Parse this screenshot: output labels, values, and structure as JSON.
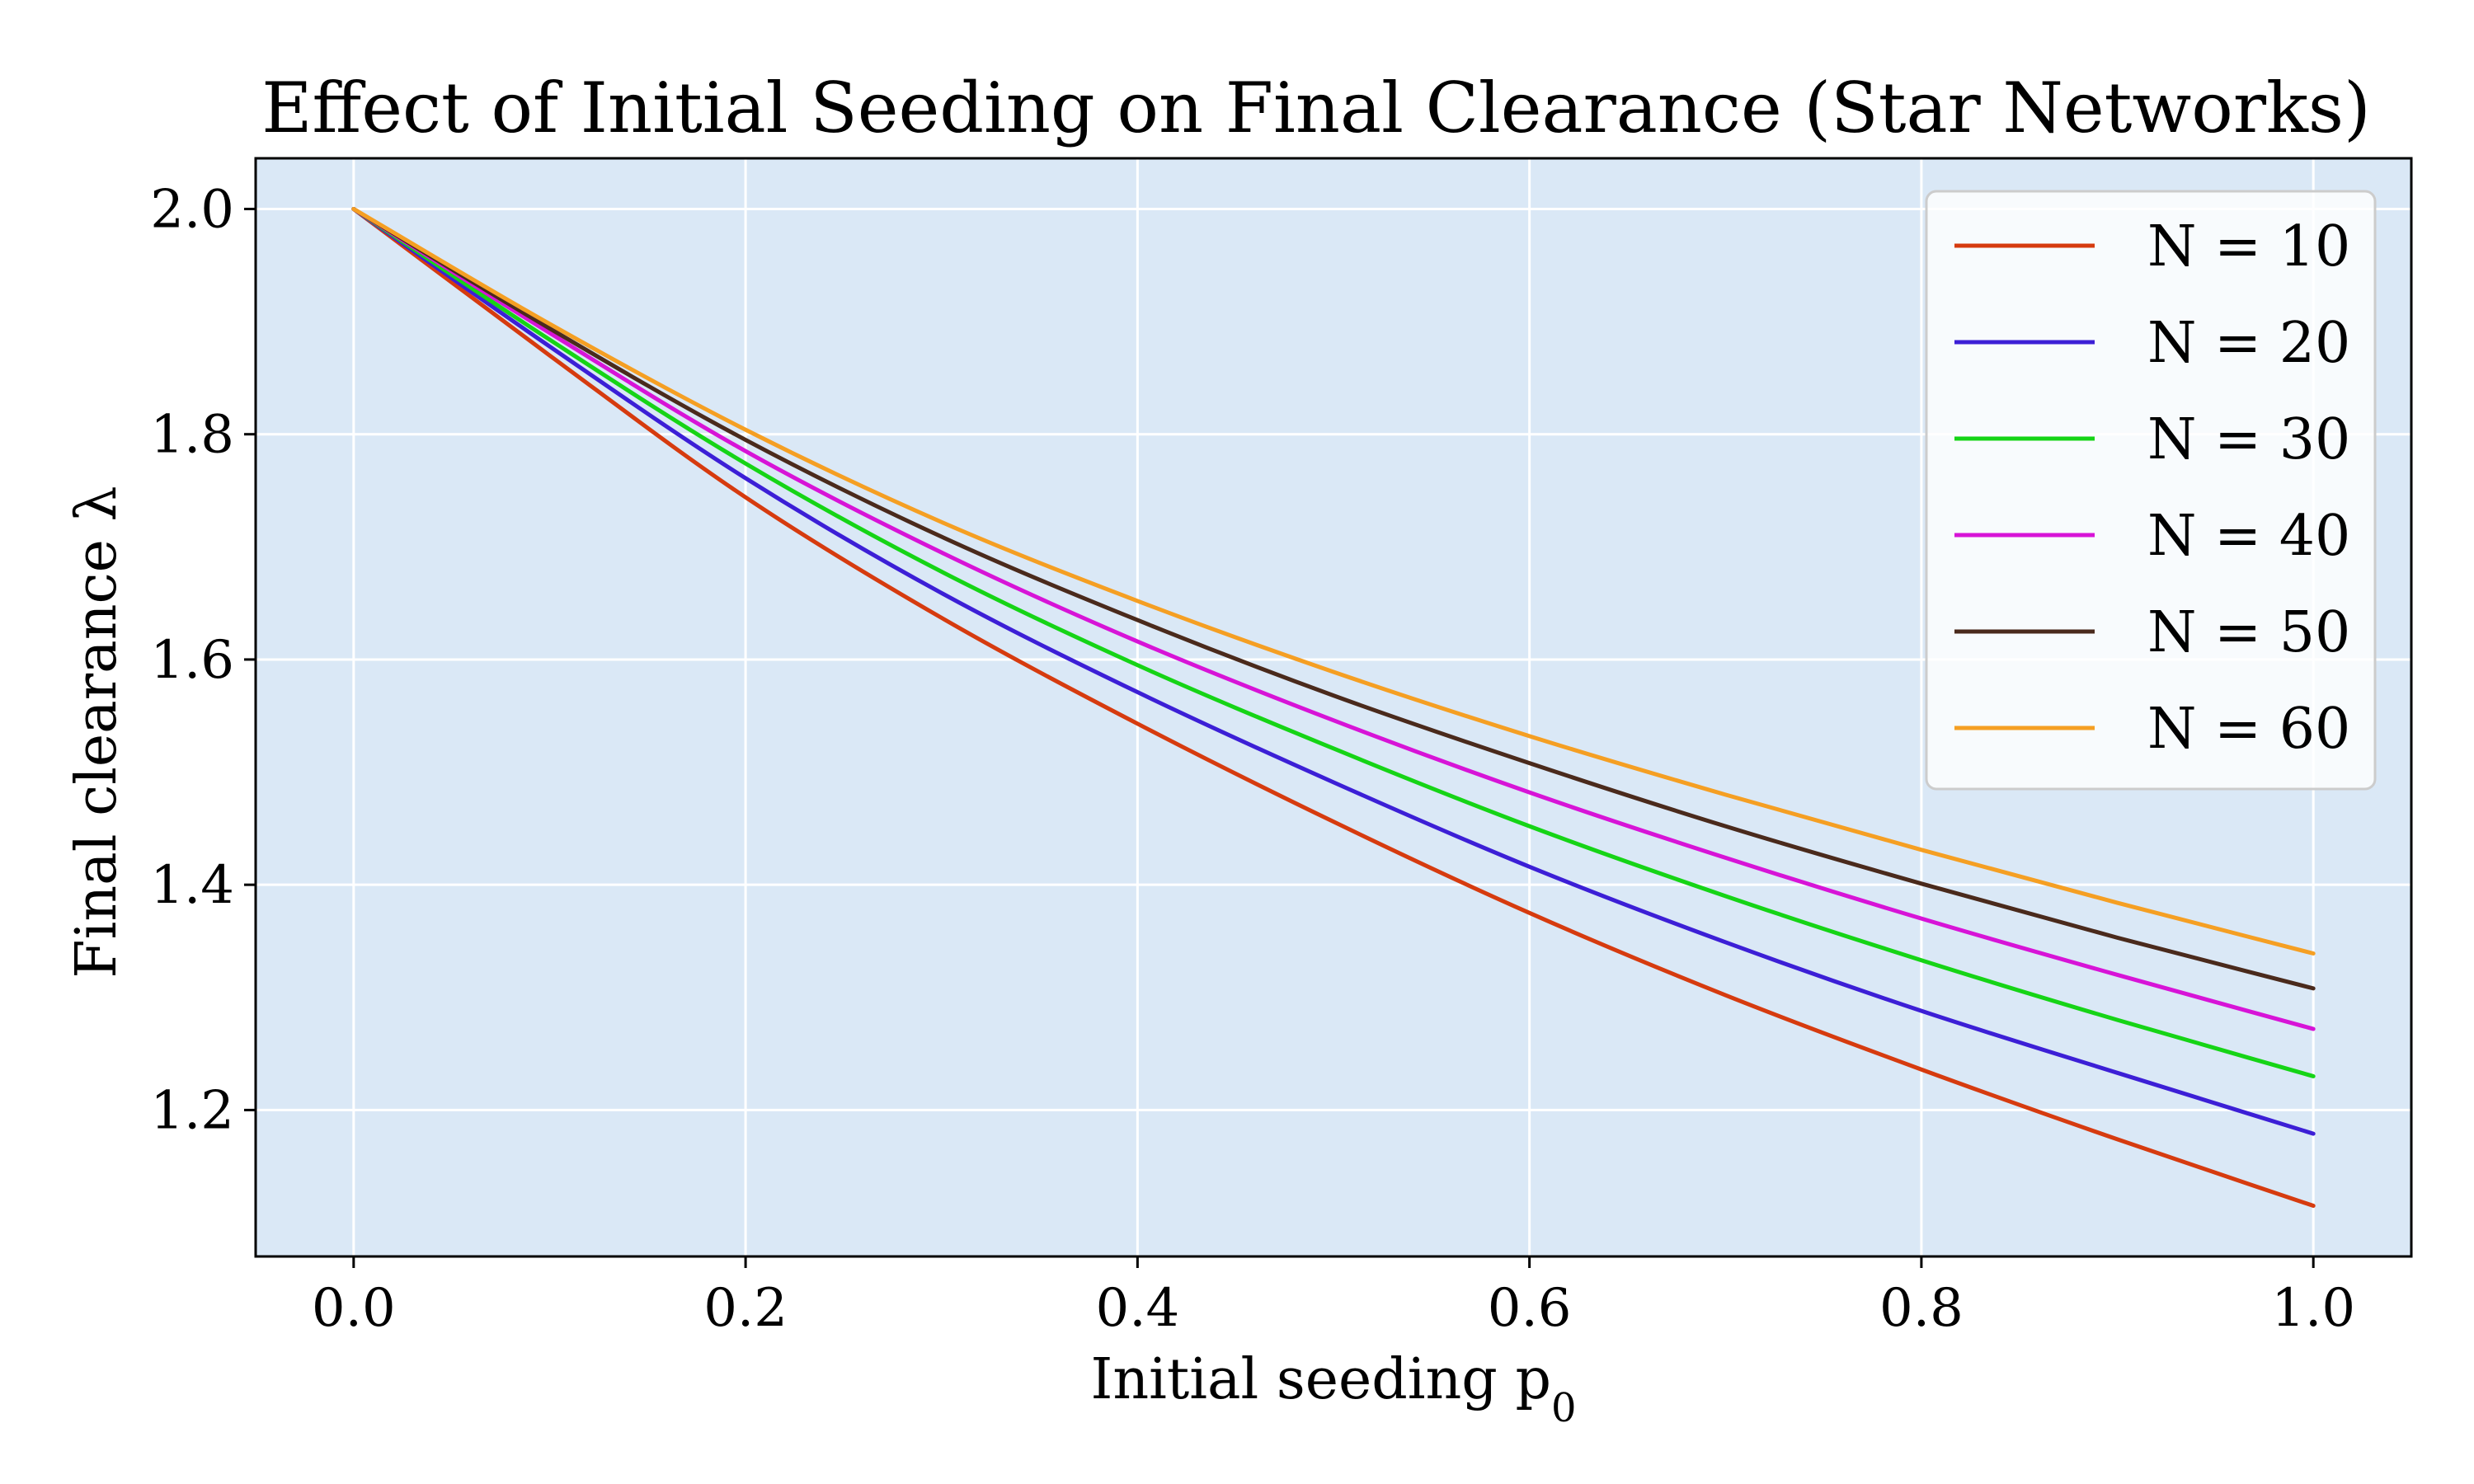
{
  "chart_data": {
    "type": "line",
    "title": "Effect of Initial Seeding on Final Clearance (Star Networks)",
    "xlabel": "Initial seeding p",
    "xlabel_sub": "0",
    "ylabel": "Final clearance λ",
    "xlim": [
      -0.05,
      1.05
    ],
    "ylim": [
      1.07,
      2.045
    ],
    "xticks": [
      0.0,
      0.2,
      0.4,
      0.6,
      0.8,
      1.0
    ],
    "xtick_labels": [
      "0.0",
      "0.2",
      "0.4",
      "0.6",
      "0.8",
      "1.0"
    ],
    "yticks": [
      1.2,
      1.4,
      1.6,
      1.8,
      2.0
    ],
    "ytick_labels": [
      "1.2",
      "1.4",
      "1.6",
      "1.8",
      "2.0"
    ],
    "grid": true,
    "legend_position": "top-right",
    "plot_background": "#dae8f6",
    "x": [
      0.0,
      0.1,
      0.2,
      0.3,
      0.4,
      0.5,
      0.6,
      0.7,
      0.8,
      0.9,
      1.0
    ],
    "series": [
      {
        "name": "N = 10",
        "color": "#d63b0f",
        "values": [
          2.0,
          1.87,
          1.744,
          1.637,
          1.543,
          1.456,
          1.375,
          1.302,
          1.236,
          1.174,
          1.115
        ]
      },
      {
        "name": "N = 20",
        "color": "#3c1fd6",
        "values": [
          2.0,
          1.878,
          1.761,
          1.659,
          1.571,
          1.491,
          1.416,
          1.349,
          1.288,
          1.233,
          1.179
        ]
      },
      {
        "name": "N = 30",
        "color": "#16d416",
        "values": [
          2.0,
          1.884,
          1.774,
          1.678,
          1.595,
          1.521,
          1.452,
          1.39,
          1.333,
          1.28,
          1.23
        ]
      },
      {
        "name": "N = 40",
        "color": "#d714d7",
        "values": [
          2.0,
          1.89,
          1.785,
          1.695,
          1.616,
          1.546,
          1.482,
          1.424,
          1.37,
          1.32,
          1.272
        ]
      },
      {
        "name": "N = 50",
        "color": "#4a2a1c",
        "values": [
          2.0,
          1.894,
          1.795,
          1.709,
          1.635,
          1.568,
          1.508,
          1.452,
          1.401,
          1.353,
          1.308
        ]
      },
      {
        "name": "N = 60",
        "color": "#f59f23",
        "values": [
          2.0,
          1.898,
          1.804,
          1.722,
          1.652,
          1.589,
          1.532,
          1.48,
          1.431,
          1.384,
          1.339
        ]
      }
    ]
  }
}
